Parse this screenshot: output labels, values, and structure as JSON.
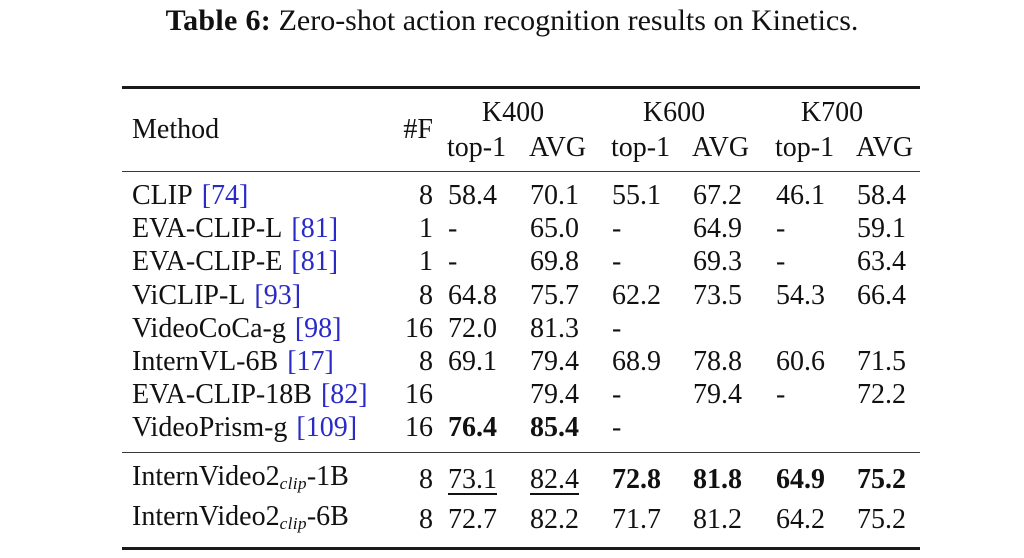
{
  "title": {
    "label": "Table 6:",
    "text": " Zero-shot action recognition results on Kinetics."
  },
  "colors": {
    "link": "#2A2AC8",
    "text": "#111111"
  },
  "table": {
    "headers": {
      "method": "Method",
      "frames": "#F",
      "groups": [
        {
          "label": "K400"
        },
        {
          "label": "K600"
        },
        {
          "label": "K700"
        }
      ],
      "sub_top1": "top-1",
      "sub_avg": "AVG"
    },
    "sections": [
      {
        "rows": [
          {
            "method": {
              "name": "CLIP",
              "cite": "[74]"
            },
            "frames": "8",
            "values": [
              {
                "t": "58.4"
              },
              {
                "t": "70.1"
              },
              {
                "t": "55.1"
              },
              {
                "t": "67.2"
              },
              {
                "t": "46.1"
              },
              {
                "t": "58.4"
              }
            ]
          },
          {
            "method": {
              "name": "EVA-CLIP-L",
              "cite": "[81]"
            },
            "frames": "1",
            "values": [
              {
                "t": "-"
              },
              {
                "t": "65.0"
              },
              {
                "t": "-"
              },
              {
                "t": "64.9"
              },
              {
                "t": "-"
              },
              {
                "t": "59.1"
              }
            ]
          },
          {
            "method": {
              "name": "EVA-CLIP-E",
              "cite": "[81]"
            },
            "frames": "1",
            "values": [
              {
                "t": "-"
              },
              {
                "t": "69.8"
              },
              {
                "t": "-"
              },
              {
                "t": "69.3"
              },
              {
                "t": "-"
              },
              {
                "t": "63.4"
              }
            ]
          },
          {
            "method": {
              "name": "ViCLIP-L",
              "cite": "[93]"
            },
            "frames": "8",
            "values": [
              {
                "t": "64.8"
              },
              {
                "t": "75.7"
              },
              {
                "t": "62.2"
              },
              {
                "t": "73.5"
              },
              {
                "t": "54.3"
              },
              {
                "t": "66.4"
              }
            ]
          },
          {
            "method": {
              "name": "VideoCoCa-g",
              "cite": "[98]"
            },
            "frames": "16",
            "values": [
              {
                "t": "72.0"
              },
              {
                "t": "81.3"
              },
              {
                "t": "-"
              },
              {
                "t": ""
              },
              {
                "t": ""
              },
              {
                "t": ""
              }
            ]
          },
          {
            "method": {
              "name": "InternVL-6B",
              "cite": "[17]"
            },
            "frames": "8",
            "values": [
              {
                "t": "69.1"
              },
              {
                "t": "79.4"
              },
              {
                "t": "68.9"
              },
              {
                "t": "78.8"
              },
              {
                "t": "60.6"
              },
              {
                "t": "71.5"
              }
            ]
          },
          {
            "method": {
              "name": "EVA-CLIP-18B",
              "cite": "[82]"
            },
            "frames": "16",
            "values": [
              {
                "t": ""
              },
              {
                "t": "79.4"
              },
              {
                "t": "-"
              },
              {
                "t": "79.4"
              },
              {
                "t": "-"
              },
              {
                "t": "72.2"
              }
            ]
          },
          {
            "method": {
              "name": "VideoPrism-g",
              "cite": "[109]"
            },
            "frames": "16",
            "values": [
              {
                "t": "76.4",
                "b": true
              },
              {
                "t": "85.4",
                "b": true
              },
              {
                "t": "-"
              },
              {
                "t": ""
              },
              {
                "t": ""
              },
              {
                "t": ""
              }
            ]
          }
        ]
      },
      {
        "rows": [
          {
            "method": {
              "name": "InternVideo2",
              "sub": "clip",
              "tail": "-1B"
            },
            "frames": "8",
            "values": [
              {
                "t": "73.1",
                "u": true
              },
              {
                "t": "82.4",
                "u": true
              },
              {
                "t": "72.8",
                "b": true
              },
              {
                "t": "81.8",
                "b": true
              },
              {
                "t": "64.9",
                "b": true
              },
              {
                "t": "75.2",
                "b": true
              }
            ]
          },
          {
            "method": {
              "name": "InternVideo2",
              "sub": "clip",
              "tail": "-6B"
            },
            "frames": "8",
            "values": [
              {
                "t": "72.7"
              },
              {
                "t": "82.2"
              },
              {
                "t": "71.7"
              },
              {
                "t": "81.2"
              },
              {
                "t": "64.2"
              },
              {
                "t": "75.2"
              }
            ]
          }
        ]
      }
    ]
  }
}
